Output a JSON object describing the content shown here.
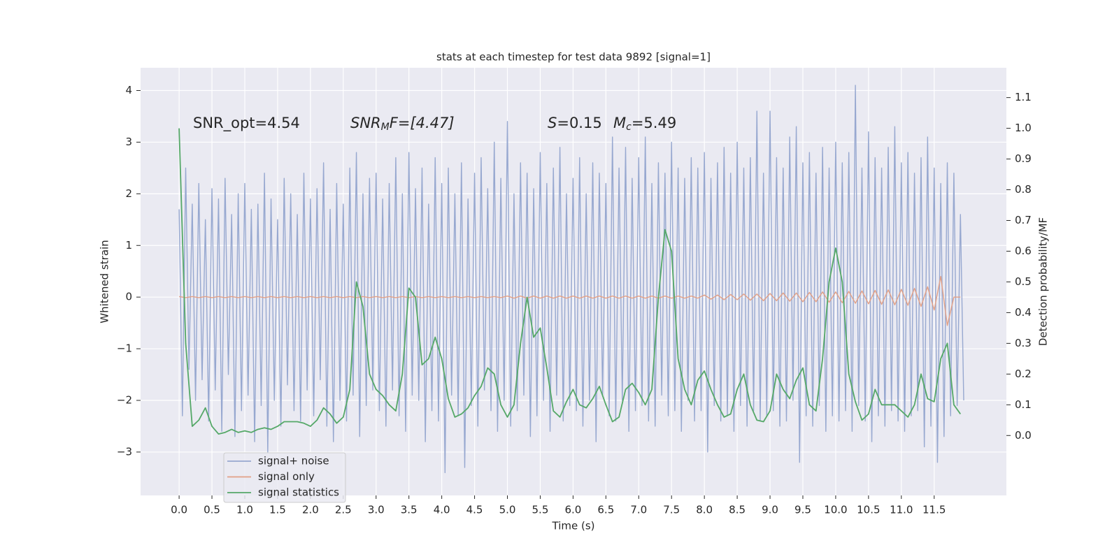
{
  "chart_data": {
    "type": "line",
    "title": "stats at each timestep for test data 9892 [signal=1]",
    "xlabel": "Time (s)",
    "ylabel": "Whitened strain",
    "y2label": "Detection probability/MF",
    "annotations": [
      "SNR_opt=4.54",
      [
        "SNR",
        "M",
        "F=[4.47]"
      ],
      [
        "S",
        "=0.15"
      ],
      [
        "M",
        "c",
        "=5.49"
      ]
    ],
    "xlim": [
      -0.587,
      12.6
    ],
    "ylim": [
      -3.84,
      4.44
    ],
    "y2lim": [
      -0.195,
      1.197
    ],
    "xticks": [
      {
        "value": 0,
        "label": "0.0"
      },
      0.5,
      {
        "value": 1,
        "label": "1.0"
      },
      1.5,
      {
        "value": 2,
        "label": "2.0"
      },
      2.5,
      {
        "value": 3,
        "label": "3.0"
      },
      3.5,
      {
        "value": 4,
        "label": "4.0"
      },
      4.5,
      {
        "value": 5,
        "label": "5.0"
      },
      5.5,
      {
        "value": 6,
        "label": "6.0"
      },
      6.5,
      {
        "value": 7,
        "label": "7.0"
      },
      7.5,
      {
        "value": 8,
        "label": "8.0"
      },
      8.5,
      {
        "value": 9,
        "label": "9.0"
      },
      9.5,
      {
        "value": 10,
        "label": "10.0"
      },
      10.5,
      {
        "value": 11,
        "label": "11.0"
      },
      11.5
    ],
    "yticks": [
      {
        "value": -3,
        "label": "−3"
      },
      {
        "value": -2,
        "label": "−2"
      },
      {
        "value": -1,
        "label": "−1"
      },
      0,
      1,
      2,
      3,
      4
    ],
    "y2ticks": [
      {
        "value": 0,
        "label": "0.0"
      },
      0.1,
      0.2,
      0.3,
      0.4,
      0.5,
      0.6,
      0.7,
      0.8,
      0.9,
      {
        "value": 1,
        "label": "1.0"
      },
      1.1
    ],
    "grid": true,
    "x": [
      0,
      0.1,
      0.2,
      0.3,
      0.4,
      0.5,
      0.6,
      0.7,
      0.8,
      0.9,
      1,
      1.1,
      1.2,
      1.3,
      1.4,
      1.5,
      1.6,
      1.7,
      1.8,
      1.9,
      2,
      2.1,
      2.2,
      2.3,
      2.4,
      2.5,
      2.6,
      2.7,
      2.8,
      2.9,
      3,
      3.1,
      3.2,
      3.3,
      3.4,
      3.5,
      3.6,
      3.7,
      3.8,
      3.9,
      4,
      4.1,
      4.2,
      4.3,
      4.4,
      4.5,
      4.6,
      4.7,
      4.8,
      4.9,
      5,
      5.1,
      5.2,
      5.3,
      5.4,
      5.5,
      5.6,
      5.7,
      5.8,
      5.9,
      6,
      6.1,
      6.2,
      6.3,
      6.4,
      6.5,
      6.6,
      6.7,
      6.8,
      6.9,
      7,
      7.1,
      7.2,
      7.3,
      7.4,
      7.5,
      7.6,
      7.7,
      7.8,
      7.9,
      8,
      8.1,
      8.2,
      8.3,
      8.4,
      8.5,
      8.6,
      8.7,
      8.8,
      8.9,
      9,
      9.1,
      9.2,
      9.3,
      9.4,
      9.5,
      9.6,
      9.7,
      9.8,
      9.9,
      10,
      10.1,
      10.2,
      10.3,
      10.4,
      10.5,
      10.6,
      10.7,
      10.8,
      10.9,
      11,
      11.1,
      11.2,
      11.3,
      11.4,
      11.5,
      11.6,
      11.7,
      11.8,
      11.9
    ],
    "series": [
      {
        "name": "signal+ noise",
        "color": "#97a8d0",
        "x": [
          0,
          0.05,
          0.1,
          0.15,
          0.2,
          0.25,
          0.3,
          0.35,
          0.4,
          0.45,
          0.5,
          0.55,
          0.6,
          0.65,
          0.7,
          0.75,
          0.8,
          0.85,
          0.9,
          0.95,
          1,
          1.05,
          1.1,
          1.15,
          1.2,
          1.25,
          1.3,
          1.35,
          1.4,
          1.45,
          1.5,
          1.55,
          1.6,
          1.65,
          1.7,
          1.75,
          1.8,
          1.85,
          1.9,
          1.95,
          2,
          2.05,
          2.1,
          2.15,
          2.2,
          2.25,
          2.3,
          2.35,
          2.4,
          2.45,
          2.5,
          2.55,
          2.6,
          2.65,
          2.7,
          2.75,
          2.8,
          2.85,
          2.9,
          2.95,
          3,
          3.05,
          3.1,
          3.15,
          3.2,
          3.25,
          3.3,
          3.35,
          3.4,
          3.45,
          3.5,
          3.55,
          3.6,
          3.65,
          3.7,
          3.75,
          3.8,
          3.85,
          3.9,
          3.95,
          4,
          4.05,
          4.1,
          4.15,
          4.2,
          4.25,
          4.3,
          4.35,
          4.4,
          4.45,
          4.5,
          4.55,
          4.6,
          4.65,
          4.7,
          4.75,
          4.8,
          4.85,
          4.9,
          4.95,
          5,
          5.05,
          5.1,
          5.15,
          5.2,
          5.25,
          5.3,
          5.35,
          5.4,
          5.45,
          5.5,
          5.55,
          5.6,
          5.65,
          5.7,
          5.75,
          5.8,
          5.85,
          5.9,
          5.95,
          6,
          6.05,
          6.1,
          6.15,
          6.2,
          6.25,
          6.3,
          6.35,
          6.4,
          6.45,
          6.5,
          6.55,
          6.6,
          6.65,
          6.7,
          6.75,
          6.8,
          6.85,
          6.9,
          6.95,
          7,
          7.05,
          7.1,
          7.15,
          7.2,
          7.25,
          7.3,
          7.35,
          7.4,
          7.45,
          7.5,
          7.55,
          7.6,
          7.65,
          7.7,
          7.75,
          7.8,
          7.85,
          7.9,
          7.95,
          8,
          8.05,
          8.1,
          8.15,
          8.2,
          8.25,
          8.3,
          8.35,
          8.4,
          8.45,
          8.5,
          8.55,
          8.6,
          8.65,
          8.7,
          8.75,
          8.8,
          8.85,
          8.9,
          8.95,
          9,
          9.05,
          9.1,
          9.15,
          9.2,
          9.25,
          9.3,
          9.35,
          9.4,
          9.45,
          9.5,
          9.55,
          9.6,
          9.65,
          9.7,
          9.75,
          9.8,
          9.85,
          9.9,
          9.95,
          10,
          10.05,
          10.1,
          10.15,
          10.2,
          10.25,
          10.3,
          10.35,
          10.4,
          10.45,
          10.5,
          10.55,
          10.6,
          10.65,
          10.7,
          10.75,
          10.8,
          10.85,
          10.9,
          10.95,
          11,
          11.05,
          11.1,
          11.15,
          11.2,
          11.25,
          11.3,
          11.35,
          11.4,
          11.45,
          11.5,
          11.55,
          11.6,
          11.65,
          11.7,
          11.75,
          11.8,
          11.85,
          11.9,
          11.95
        ],
        "values": [
          1.7,
          -2.3,
          2.5,
          -1.4,
          1.8,
          -2.0,
          2.2,
          -1.6,
          1.5,
          -2.4,
          2.1,
          -1.8,
          1.9,
          -2.6,
          2.3,
          -1.5,
          1.6,
          -2.7,
          2.0,
          -2.2,
          2.2,
          -1.9,
          1.7,
          -2.8,
          1.8,
          -2.1,
          2.4,
          -3.0,
          1.9,
          -2.0,
          1.5,
          -2.5,
          2.3,
          -1.7,
          2.0,
          -2.2,
          1.6,
          -2.4,
          2.4,
          -1.8,
          1.9,
          -2.3,
          2.1,
          -1.6,
          2.6,
          -2.5,
          1.7,
          -2.8,
          2.2,
          -2.0,
          1.8,
          -2.4,
          2.5,
          -1.9,
          2.8,
          -2.7,
          2.0,
          -2.1,
          2.3,
          -1.8,
          2.4,
          -2.2,
          1.9,
          -2.5,
          2.2,
          -1.8,
          2.7,
          -2.3,
          2.0,
          -2.6,
          2.8,
          -1.9,
          2.1,
          -2.0,
          2.5,
          -2.8,
          1.8,
          -2.2,
          2.7,
          -2.4,
          2.2,
          -3.4,
          2.5,
          -1.9,
          2.0,
          -2.3,
          2.6,
          -3.3,
          1.9,
          -2.1,
          2.4,
          -2.5,
          2.7,
          -1.8,
          2.1,
          -2.2,
          3.0,
          -2.6,
          2.3,
          -2.0,
          3.4,
          -2.5,
          2.0,
          -2.2,
          2.6,
          -1.9,
          2.4,
          -2.7,
          2.1,
          -2.3,
          2.8,
          -2.0,
          2.2,
          -2.6,
          2.5,
          -1.9,
          2.9,
          -2.4,
          2.0,
          -2.1,
          2.3,
          -2.2,
          2.7,
          -2.5,
          2.0,
          -2.0,
          2.6,
          -2.8,
          2.4,
          -1.9,
          2.2,
          -2.3,
          3.1,
          -2.4,
          2.5,
          -2.0,
          2.9,
          -2.6,
          2.3,
          -2.2,
          2.7,
          -2.1,
          3.1,
          -2.4,
          2.2,
          -2.5,
          2.6,
          -1.9,
          2.4,
          -2.3,
          3.0,
          -2.2,
          2.5,
          -2.6,
          2.3,
          -2.0,
          2.7,
          -2.4,
          2.5,
          -2.2,
          2.8,
          -3.0,
          2.3,
          -2.1,
          2.6,
          -2.4,
          2.9,
          -2.3,
          2.4,
          -2.6,
          3.0,
          -2.1,
          2.5,
          -2.5,
          2.7,
          -2.2,
          3.6,
          -2.4,
          2.4,
          -2.3,
          3.6,
          -2.2,
          2.7,
          -2.5,
          2.5,
          -2.4,
          3.1,
          -2.0,
          3.3,
          -3.2,
          2.6,
          -2.3,
          2.8,
          -2.5,
          2.4,
          -2.1,
          2.9,
          -2.6,
          2.5,
          -2.3,
          3.0,
          -2.4,
          2.6,
          -2.2,
          2.8,
          -2.6,
          4.1,
          -2.1,
          2.5,
          -2.4,
          3.2,
          -2.8,
          2.7,
          -2.3,
          2.5,
          -2.5,
          2.9,
          -2.2,
          3.3,
          -2.4,
          2.6,
          -2.6,
          2.8,
          -2.3,
          2.4,
          -2.2,
          2.7,
          -2.9,
          3.1,
          -2.5,
          2.5,
          -3.2,
          2.2,
          -2.7,
          2.6,
          -2.3,
          2.4,
          -2.1,
          1.6,
          -2.0
        ]
      },
      {
        "name": "signal only",
        "color": "#e2a086",
        "values": [
          0.01,
          -0.01,
          0.01,
          -0.01,
          0.01,
          -0.01,
          0.01,
          -0.01,
          0.01,
          -0.01,
          0.01,
          -0.01,
          0.01,
          -0.01,
          0.01,
          -0.01,
          0.01,
          -0.01,
          0.01,
          -0.01,
          0.01,
          -0.01,
          0.01,
          -0.01,
          0.01,
          -0.01,
          0.01,
          -0.01,
          0.01,
          -0.01,
          0.01,
          -0.01,
          0.01,
          -0.01,
          0.01,
          -0.01,
          0.01,
          -0.01,
          0.01,
          -0.01,
          0.01,
          -0.01,
          0.01,
          -0.01,
          0.01,
          -0.01,
          0.01,
          -0.01,
          0.01,
          -0.01,
          0.02,
          -0.02,
          0.02,
          -0.02,
          0.02,
          -0.02,
          0.02,
          -0.02,
          0.02,
          -0.02,
          0.02,
          -0.02,
          0.02,
          -0.02,
          0.02,
          -0.02,
          0.02,
          -0.02,
          0.02,
          -0.02,
          0.02,
          -0.02,
          0.02,
          -0.02,
          0.02,
          -0.02,
          0.02,
          -0.02,
          0.02,
          -0.02,
          0.04,
          -0.04,
          0.04,
          -0.05,
          0.05,
          -0.05,
          0.06,
          -0.06,
          0.06,
          -0.07,
          0.07,
          -0.07,
          0.08,
          -0.08,
          0.08,
          -0.09,
          0.09,
          -0.09,
          0.1,
          -0.1,
          0.1,
          -0.11,
          0.11,
          -0.12,
          0.12,
          -0.13,
          0.13,
          -0.14,
          0.14,
          -0.15,
          0.15,
          -0.16,
          0.17,
          -0.18,
          0.2,
          -0.25,
          0.4,
          -0.55,
          0,
          0
        ]
      },
      {
        "name": "signal statistics",
        "color": "#55a868",
        "axis": "y2",
        "values": [
          1.0,
          0.3,
          0.03,
          0.05,
          0.09,
          0.03,
          0.005,
          0.01,
          0.02,
          0.01,
          0.015,
          0.01,
          0.02,
          0.025,
          0.02,
          0.03,
          0.045,
          0.045,
          0.045,
          0.04,
          0.03,
          0.05,
          0.09,
          0.07,
          0.04,
          0.06,
          0.15,
          0.5,
          0.42,
          0.2,
          0.15,
          0.13,
          0.1,
          0.08,
          0.2,
          0.48,
          0.45,
          0.23,
          0.25,
          0.32,
          0.25,
          0.12,
          0.06,
          0.07,
          0.09,
          0.13,
          0.16,
          0.22,
          0.2,
          0.1,
          0.06,
          0.1,
          0.3,
          0.45,
          0.32,
          0.35,
          0.22,
          0.08,
          0.06,
          0.11,
          0.15,
          0.1,
          0.09,
          0.12,
          0.16,
          0.1,
          0.045,
          0.06,
          0.15,
          0.17,
          0.14,
          0.1,
          0.15,
          0.45,
          0.67,
          0.6,
          0.25,
          0.15,
          0.1,
          0.18,
          0.21,
          0.15,
          0.1,
          0.06,
          0.07,
          0.15,
          0.2,
          0.1,
          0.05,
          0.045,
          0.08,
          0.2,
          0.15,
          0.12,
          0.18,
          0.22,
          0.1,
          0.08,
          0.25,
          0.5,
          0.61,
          0.5,
          0.2,
          0.11,
          0.05,
          0.07,
          0.15,
          0.1,
          0.1,
          0.1,
          0.08,
          0.06,
          0.1,
          0.2,
          0.12,
          0.11,
          0.25,
          0.3,
          0.1,
          0.07
        ]
      }
    ]
  }
}
